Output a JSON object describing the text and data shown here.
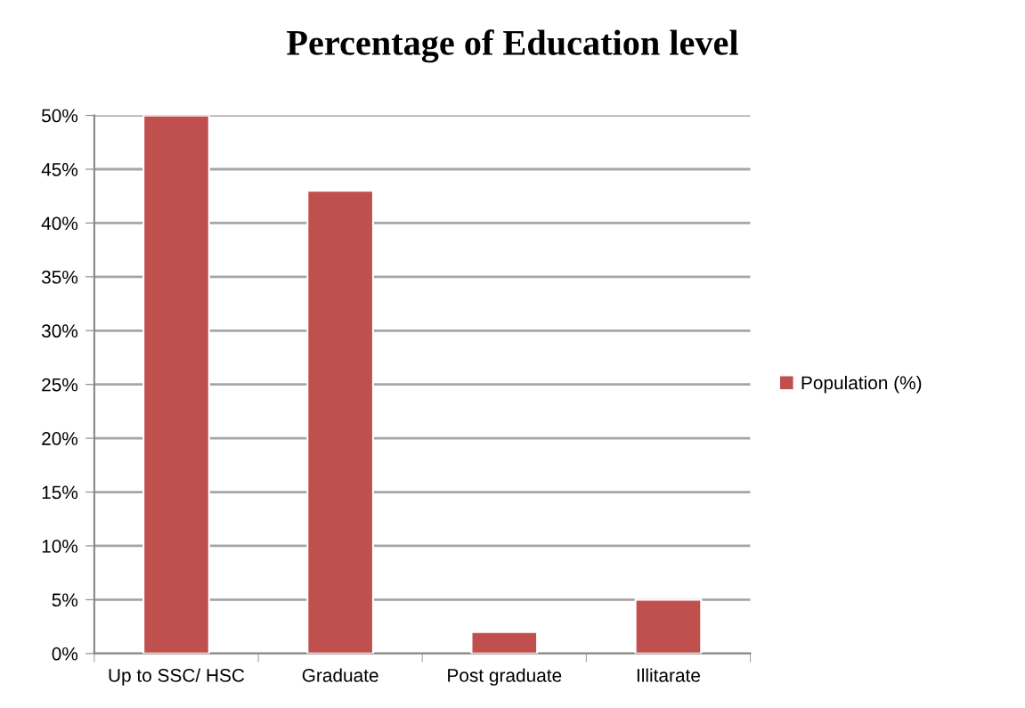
{
  "chart_data": {
    "type": "bar",
    "title": "Percentage of Education level",
    "categories": [
      "Up to SSC/ HSC",
      "Graduate",
      "Post graduate",
      "Illitarate"
    ],
    "series": [
      {
        "name": "Population (%)",
        "color": "#c0504d",
        "values": [
          50,
          43,
          2,
          5
        ]
      }
    ],
    "ylim": [
      0,
      50
    ],
    "yticks": [
      {
        "value": 0,
        "label": "0%"
      },
      {
        "value": 5,
        "label": "5%"
      },
      {
        "value": 10,
        "label": "10%"
      },
      {
        "value": 15,
        "label": "15%"
      },
      {
        "value": 20,
        "label": "20%"
      },
      {
        "value": 25,
        "label": "25%"
      },
      {
        "value": 30,
        "label": "30%"
      },
      {
        "value": 35,
        "label": "35%"
      },
      {
        "value": 40,
        "label": "40%"
      },
      {
        "value": 45,
        "label": "45%"
      },
      {
        "value": 50,
        "label": "50%"
      }
    ],
    "grid": "y",
    "legend": "right"
  }
}
